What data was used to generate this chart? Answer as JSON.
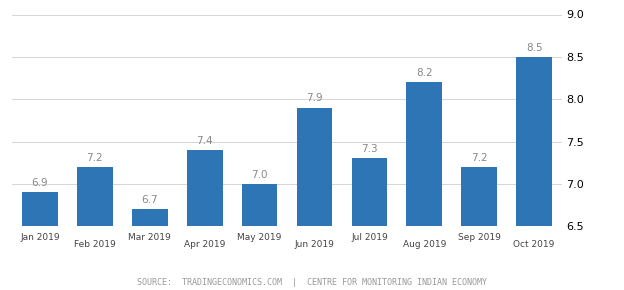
{
  "categories": [
    "Jan 2019",
    "Feb 2019",
    "Mar 2019",
    "Apr 2019",
    "May 2019",
    "Jun 2019",
    "Jul 2019",
    "Aug 2019",
    "Sep 2019",
    "Oct 2019"
  ],
  "values": [
    6.9,
    7.2,
    6.7,
    7.4,
    7.0,
    7.9,
    7.3,
    8.2,
    7.2,
    8.5
  ],
  "bar_color": "#2e75b6",
  "ylim": [
    6.5,
    9.0
  ],
  "yticks": [
    6.5,
    7.0,
    7.5,
    8.0,
    8.5,
    9.0
  ],
  "background_color": "#ffffff",
  "grid_color": "#d0d0d0",
  "label_color": "#888888",
  "source_text": "SOURCE:  TRADINGECONOMICS.COM  |  CENTRE FOR MONITORING INDIAN ECONOMY",
  "source_fontsize": 6.0,
  "bar_label_fontsize": 7.5,
  "tick_fontsize": 8,
  "figsize": [
    6.24,
    2.9
  ],
  "dpi": 100
}
